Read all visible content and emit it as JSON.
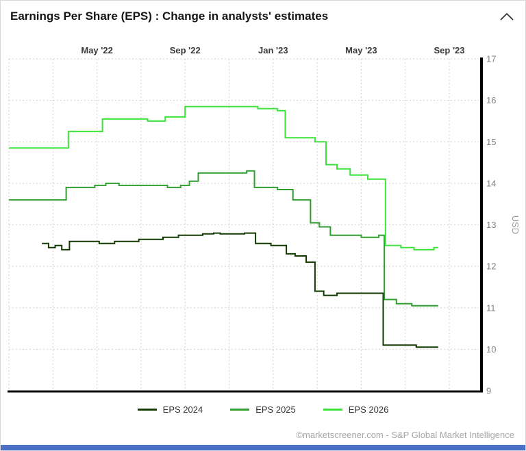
{
  "header": {
    "title": "Earnings Per Share (EPS) : Change in analysts' estimates",
    "collapse_icon": "chevron-up"
  },
  "footer": {
    "credit": "©marketscreener.com - S&P Global Market Intelligence"
  },
  "colors": {
    "accent_bar": "#4a6fc4",
    "grid": "#d0d0d0",
    "axis": "#000000",
    "x_label": "#3a3a3a",
    "y_label": "#848484"
  },
  "chart_data": {
    "type": "line",
    "subtype": "step-after",
    "title": "Earnings Per Share (EPS) : Change in analysts' estimates",
    "xlabel": "",
    "ylabel": "USD",
    "ylim": [
      9,
      17
    ],
    "yticks": [
      9,
      10,
      11,
      12,
      13,
      14,
      15,
      16,
      17
    ],
    "x_unit": "months_since_jan_2022",
    "xlim": [
      0,
      21.4
    ],
    "x_ticks": [
      {
        "label": "May '22",
        "t": 4
      },
      {
        "label": "Sep '22",
        "t": 8
      },
      {
        "label": "Jan '23",
        "t": 12
      },
      {
        "label": "May '23",
        "t": 16
      },
      {
        "label": "Sep '23",
        "t": 20
      }
    ],
    "grid_t": [
      0,
      2,
      4,
      6,
      8,
      10,
      12,
      14,
      16,
      18,
      20
    ],
    "grid": true,
    "legend_position": "bottom",
    "series": [
      {
        "name": "EPS 2024",
        "color": "#123a00",
        "points": [
          [
            1.5,
            12.55
          ],
          [
            1.8,
            12.45
          ],
          [
            2.1,
            12.5
          ],
          [
            2.4,
            12.4
          ],
          [
            2.75,
            12.6
          ],
          [
            4.1,
            12.55
          ],
          [
            4.8,
            12.6
          ],
          [
            5.9,
            12.65
          ],
          [
            7.0,
            12.7
          ],
          [
            7.7,
            12.75
          ],
          [
            8.8,
            12.78
          ],
          [
            9.3,
            12.8
          ],
          [
            9.6,
            12.78
          ],
          [
            10.7,
            12.8
          ],
          [
            11.2,
            12.55
          ],
          [
            11.9,
            12.5
          ],
          [
            12.6,
            12.3
          ],
          [
            13.0,
            12.25
          ],
          [
            13.5,
            12.1
          ],
          [
            13.9,
            11.4
          ],
          [
            14.3,
            11.3
          ],
          [
            14.9,
            11.35
          ],
          [
            17.0,
            10.1
          ],
          [
            18.5,
            10.05
          ],
          [
            19.5,
            10.05
          ]
        ]
      },
      {
        "name": "EPS 2025",
        "color": "#2f9e2f",
        "points": [
          [
            0,
            13.6
          ],
          [
            2.6,
            13.9
          ],
          [
            3.9,
            13.95
          ],
          [
            4.4,
            14.0
          ],
          [
            5.0,
            13.95
          ],
          [
            7.2,
            13.9
          ],
          [
            7.8,
            13.95
          ],
          [
            8.2,
            14.05
          ],
          [
            8.6,
            14.25
          ],
          [
            10.8,
            14.3
          ],
          [
            11.15,
            13.9
          ],
          [
            12.2,
            13.85
          ],
          [
            12.9,
            13.6
          ],
          [
            13.7,
            13.05
          ],
          [
            14.1,
            12.95
          ],
          [
            14.6,
            12.75
          ],
          [
            16.0,
            12.7
          ],
          [
            16.8,
            12.75
          ],
          [
            17.05,
            11.2
          ],
          [
            17.6,
            11.1
          ],
          [
            18.3,
            11.05
          ],
          [
            19.5,
            11.05
          ]
        ]
      },
      {
        "name": "EPS 2026",
        "color": "#3be33b",
        "points": [
          [
            0,
            14.85
          ],
          [
            2.7,
            15.25
          ],
          [
            4.25,
            15.55
          ],
          [
            6.3,
            15.5
          ],
          [
            7.1,
            15.6
          ],
          [
            8.0,
            15.85
          ],
          [
            11.3,
            15.8
          ],
          [
            12.2,
            15.75
          ],
          [
            12.55,
            15.1
          ],
          [
            13.9,
            15.0
          ],
          [
            14.4,
            14.45
          ],
          [
            14.9,
            14.35
          ],
          [
            15.5,
            14.2
          ],
          [
            16.3,
            14.1
          ],
          [
            17.1,
            12.5
          ],
          [
            17.8,
            12.45
          ],
          [
            18.4,
            12.4
          ],
          [
            19.3,
            12.45
          ],
          [
            19.5,
            12.45
          ]
        ]
      }
    ]
  }
}
